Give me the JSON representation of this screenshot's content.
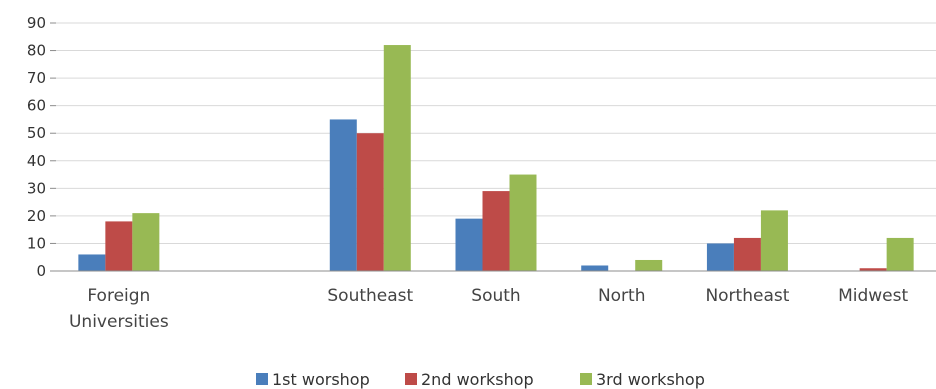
{
  "chart_data": {
    "type": "bar",
    "categories": [
      "Foreign\nUniversities",
      "",
      "Southeast",
      "South",
      "North",
      "Northeast",
      "Midwest"
    ],
    "series": [
      {
        "name": "1st worshop",
        "color": "#4a7ebb",
        "values": [
          6,
          null,
          55,
          19,
          2,
          10,
          0
        ]
      },
      {
        "name": "2nd workshop",
        "color": "#be4b48",
        "values": [
          18,
          null,
          50,
          29,
          0,
          12,
          1
        ]
      },
      {
        "name": "3rd workshop",
        "color": "#98b954",
        "values": [
          21,
          null,
          82,
          35,
          4,
          22,
          12
        ]
      }
    ],
    "yticks": [
      0,
      10,
      20,
      30,
      40,
      50,
      60,
      70,
      80,
      90
    ],
    "ylim": [
      0,
      90
    ],
    "grid": true,
    "legend": "bottom"
  }
}
